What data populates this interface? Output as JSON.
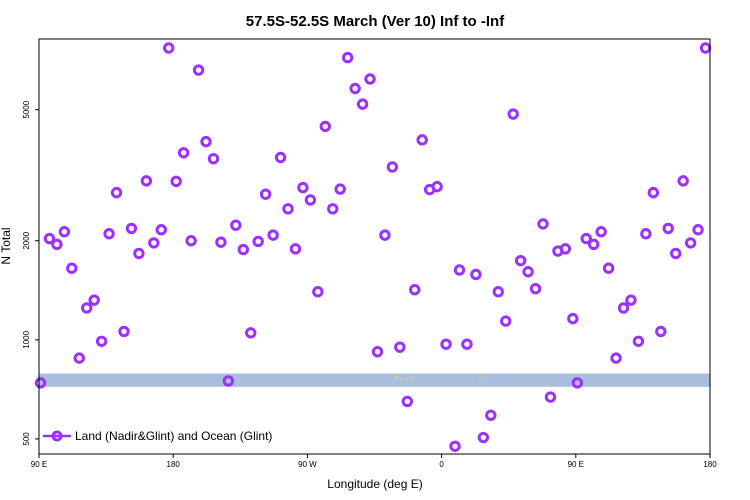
{
  "chart_data": {
    "type": "scatter",
    "title": "57.5S-52.5S March (Ver 10)   Inf to -Inf",
    "xlabel": "Longitude (deg E)",
    "ylabel": "N Total",
    "x_tick_labels": [
      "90 E",
      "180",
      "90 W",
      "0",
      "90 E",
      "180"
    ],
    "x_ticks_deg": [
      90,
      180,
      270,
      360,
      450,
      540
    ],
    "xlim": [
      90,
      540
    ],
    "y_scale": "log",
    "y_tick_labels": [
      "500",
      "1000",
      "2000",
      "5000"
    ],
    "y_ticks": [
      500,
      1000,
      2000,
      5000
    ],
    "ylim": [
      450,
      8200
    ],
    "grid": false,
    "legend_position": "bottom-left",
    "series": [
      {
        "name": "Land (Nadir&Glint) and Ocean (Glint)",
        "color": "#9b30ff",
        "marker": "open-circle",
        "points": [
          {
            "x": 91,
            "y": 740
          },
          {
            "x": 97,
            "y": 2030
          },
          {
            "x": 102,
            "y": 1950
          },
          {
            "x": 107,
            "y": 2130
          },
          {
            "x": 112,
            "y": 1650
          },
          {
            "x": 117,
            "y": 880
          },
          {
            "x": 122,
            "y": 1250
          },
          {
            "x": 127,
            "y": 1320
          },
          {
            "x": 132,
            "y": 990
          },
          {
            "x": 137,
            "y": 2100
          },
          {
            "x": 142,
            "y": 2800
          },
          {
            "x": 147,
            "y": 1060
          },
          {
            "x": 152,
            "y": 2180
          },
          {
            "x": 157,
            "y": 1830
          },
          {
            "x": 162,
            "y": 3040
          },
          {
            "x": 167,
            "y": 1970
          },
          {
            "x": 172,
            "y": 2160
          },
          {
            "x": 177,
            "y": 7700
          },
          {
            "x": 182,
            "y": 3030
          },
          {
            "x": 187,
            "y": 3700
          },
          {
            "x": 192,
            "y": 2000
          },
          {
            "x": 197,
            "y": 6600
          },
          {
            "x": 202,
            "y": 4000
          },
          {
            "x": 207,
            "y": 3550
          },
          {
            "x": 212,
            "y": 1980
          },
          {
            "x": 217,
            "y": 750
          },
          {
            "x": 222,
            "y": 2230
          },
          {
            "x": 227,
            "y": 1880
          },
          {
            "x": 232,
            "y": 1050
          },
          {
            "x": 237,
            "y": 1990
          },
          {
            "x": 242,
            "y": 2770
          },
          {
            "x": 247,
            "y": 2080
          },
          {
            "x": 252,
            "y": 3580
          },
          {
            "x": 257,
            "y": 2500
          },
          {
            "x": 262,
            "y": 1890
          },
          {
            "x": 267,
            "y": 2900
          },
          {
            "x": 272,
            "y": 2660
          },
          {
            "x": 277,
            "y": 1400
          },
          {
            "x": 282,
            "y": 4450
          },
          {
            "x": 287,
            "y": 2500
          },
          {
            "x": 292,
            "y": 2870
          },
          {
            "x": 297,
            "y": 7200
          },
          {
            "x": 302,
            "y": 5800
          },
          {
            "x": 307,
            "y": 5200
          },
          {
            "x": 312,
            "y": 6200
          },
          {
            "x": 317,
            "y": 920
          },
          {
            "x": 322,
            "y": 2080
          },
          {
            "x": 327,
            "y": 3350
          },
          {
            "x": 332,
            "y": 950
          },
          {
            "x": 337,
            "y": 650
          },
          {
            "x": 342,
            "y": 1420
          },
          {
            "x": 347,
            "y": 4050
          },
          {
            "x": 352,
            "y": 2860
          },
          {
            "x": 357,
            "y": 2920
          },
          {
            "x": 363,
            "y": 970
          },
          {
            "x": 369,
            "y": 475
          },
          {
            "x": 372,
            "y": 1630
          },
          {
            "x": 377,
            "y": 970
          },
          {
            "x": 383,
            "y": 1580
          },
          {
            "x": 388,
            "y": 505
          },
          {
            "x": 393,
            "y": 590
          },
          {
            "x": 398,
            "y": 1400
          },
          {
            "x": 403,
            "y": 1140
          },
          {
            "x": 408,
            "y": 4850
          },
          {
            "x": 413,
            "y": 1740
          },
          {
            "x": 418,
            "y": 1610
          },
          {
            "x": 423,
            "y": 1430
          },
          {
            "x": 428,
            "y": 2250
          },
          {
            "x": 433,
            "y": 670
          },
          {
            "x": 438,
            "y": 1860
          },
          {
            "x": 443,
            "y": 1890
          },
          {
            "x": 448,
            "y": 1160
          },
          {
            "x": 451,
            "y": 740
          },
          {
            "x": 457,
            "y": 2030
          },
          {
            "x": 462,
            "y": 1950
          },
          {
            "x": 467,
            "y": 2130
          },
          {
            "x": 472,
            "y": 1650
          },
          {
            "x": 477,
            "y": 880
          },
          {
            "x": 482,
            "y": 1250
          },
          {
            "x": 487,
            "y": 1320
          },
          {
            "x": 492,
            "y": 990
          },
          {
            "x": 497,
            "y": 2100
          },
          {
            "x": 502,
            "y": 2800
          },
          {
            "x": 507,
            "y": 1060
          },
          {
            "x": 512,
            "y": 2180
          },
          {
            "x": 517,
            "y": 1830
          },
          {
            "x": 522,
            "y": 3040
          },
          {
            "x": 527,
            "y": 1970
          },
          {
            "x": 532,
            "y": 2160
          },
          {
            "x": 537,
            "y": 7700
          }
        ]
      }
    ],
    "band": {
      "y_range": [
        720,
        790
      ],
      "color": "#a9bfdf"
    },
    "band_dots_color": "#f0d060"
  }
}
